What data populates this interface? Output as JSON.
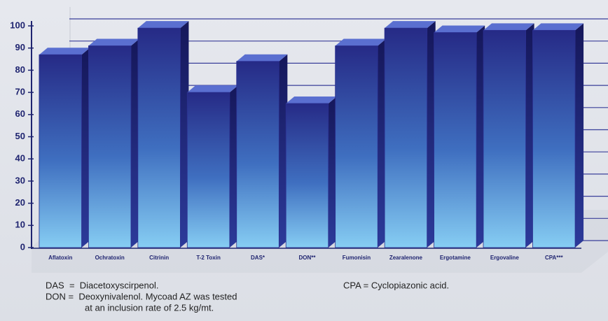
{
  "chart_data": {
    "type": "bar",
    "categories": [
      "Aflatoxin",
      "Ochratoxin",
      "Citrinin",
      "T-2 Toxin",
      "DAS*",
      "DON**",
      "Fumonisin",
      "Zearalenone",
      "Ergotamine",
      "Ergovaline",
      "CPA***"
    ],
    "values": [
      87,
      91,
      99,
      70,
      84,
      65,
      91,
      99,
      97,
      98,
      98
    ],
    "color": "#2b2f8f",
    "ylim": [
      0,
      100
    ],
    "yticks": [
      0,
      10,
      20,
      30,
      40,
      50,
      60,
      70,
      80,
      90,
      100
    ],
    "grid": true,
    "notes": [
      "DAS  =  Diacetoxyscirpenol.",
      "DON =  Deoxynivalenol. Mycoad AZ was tested",
      "at an inclusion rate of 2.5 kg/mt.",
      "CPA = Cyclopiazonic acid."
    ]
  }
}
